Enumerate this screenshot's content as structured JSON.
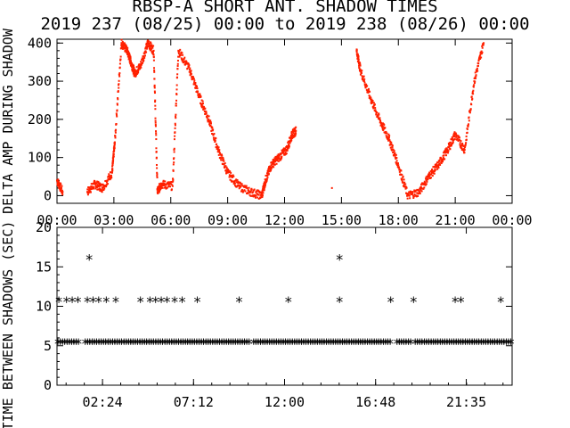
{
  "chart_data": [
    {
      "type": "scatter",
      "title": "RBSP-A SHORT ANT. SHADOW TIMES",
      "subtitle": "2019 237 (08/25) 00:00 to 2019 238 (08/26) 00:00",
      "ylabel": "DELTA AMP DURING SHADOW",
      "xlabel": "",
      "xlim": [
        "00:00",
        "24:00"
      ],
      "ylim": [
        -20,
        410
      ],
      "x_tick_labels": [
        "00:00",
        "03:00",
        "06:00",
        "09:00",
        "12:00",
        "15:00",
        "18:00",
        "21:00",
        "00:00"
      ],
      "y_tick_labels": [
        "0",
        "100",
        "200",
        "300",
        "400"
      ],
      "grid": false,
      "series": [
        {
          "color": "#ff2000",
          "x_hours": [
            0.0,
            0.3,
            1.6,
            2.0,
            2.4,
            2.9,
            3.05,
            3.4,
            3.7,
            3.9,
            4.1,
            4.4,
            4.8,
            5.1,
            5.3,
            5.5,
            6.1,
            6.4,
            7.0,
            7.5,
            8.0,
            8.5,
            9.0,
            9.6,
            10.2,
            10.8,
            11.0,
            11.3,
            11.7,
            12.1,
            12.4,
            12.6,
            14.5,
            15.8,
            16.0,
            16.5,
            17.0,
            17.5,
            18.0,
            18.5,
            19.1,
            19.6,
            20.1,
            20.6,
            21.0,
            21.5,
            22.0,
            22.5
          ],
          "y_values": [
            40,
            10,
            10,
            30,
            20,
            60,
            140,
            400,
            380,
            350,
            320,
            340,
            400,
            380,
            10,
            30,
            25,
            380,
            330,
            260,
            200,
            120,
            60,
            25,
            10,
            0,
            40,
            80,
            100,
            120,
            160,
            170,
            20,
            380,
            330,
            260,
            200,
            150,
            80,
            0,
            10,
            50,
            80,
            120,
            160,
            120,
            300,
            400
          ]
        }
      ]
    },
    {
      "type": "scatter",
      "title": "",
      "ylabel": "TIME BETWEEN SHADOWS (SEC)",
      "xlabel": "",
      "xlim": [
        "00:00",
        "24:00"
      ],
      "ylim": [
        0,
        20
      ],
      "x_tick_labels": [
        "02:24",
        "07:12",
        "12:00",
        "16:48",
        "21:35"
      ],
      "y_tick_labels": [
        "0",
        "5",
        "10",
        "15",
        "20"
      ],
      "grid": false,
      "marker": "*",
      "series": [
        {
          "color": "#000000",
          "x_hours": [
            0.1,
            0.5,
            0.8,
            1.1,
            1.6,
            1.9,
            2.2,
            2.6,
            3.1,
            4.4,
            4.9,
            5.2,
            5.5,
            5.8,
            6.2,
            6.6,
            7.4,
            9.6,
            12.2,
            14.9,
            17.6,
            18.8,
            21.0,
            21.3,
            23.4,
            1.7,
            14.9
          ],
          "y_values": [
            10.6,
            10.6,
            10.6,
            10.6,
            10.6,
            10.6,
            10.6,
            10.6,
            10.6,
            10.6,
            10.6,
            10.6,
            10.6,
            10.6,
            10.6,
            10.6,
            10.6,
            10.6,
            10.6,
            10.6,
            10.6,
            10.6,
            10.6,
            10.6,
            10.6,
            16.0,
            16.0
          ],
          "baseline_value": 5.3
        }
      ]
    }
  ]
}
